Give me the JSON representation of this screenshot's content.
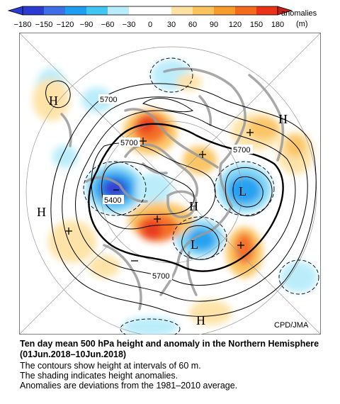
{
  "colorbar": {
    "ticks": [
      "-180",
      "-150",
      "-120",
      "-90",
      "-60",
      "-30",
      "0",
      "30",
      "60",
      "90",
      "120",
      "150",
      "180"
    ],
    "label": "anomalies",
    "unit": "(m)",
    "colors": [
      "#2b3bd1",
      "#3f6fe6",
      "#1e9ef0",
      "#3fc6f2",
      "#b8ecfa",
      "#ffffff",
      "#ffffff",
      "#fde2a4",
      "#fbc35d",
      "#f79c2a",
      "#f46a1c",
      "#e83319"
    ]
  },
  "map": {
    "source": "CPD/JMA",
    "contour_labels": [
      "5700",
      "5700",
      "5700",
      "5400",
      "5700"
    ],
    "pressure_centers": [
      "H",
      "H",
      "H",
      "H",
      "H",
      "L",
      "L"
    ],
    "colors": {
      "land": "#9a9a9a",
      "ocean": "#ffffff",
      "grid": "#888888"
    }
  },
  "caption": {
    "title": "Ten day mean 500 hPa height and anomaly in the Northern Hemisphere (01Jun.2018–10Jun.2018)",
    "line1": "The contours show height at intervals of 60 m.",
    "line2": "The shading indicates height anomalies.",
    "line3": "Anomalies are deviations from the 1981–2010 average."
  }
}
